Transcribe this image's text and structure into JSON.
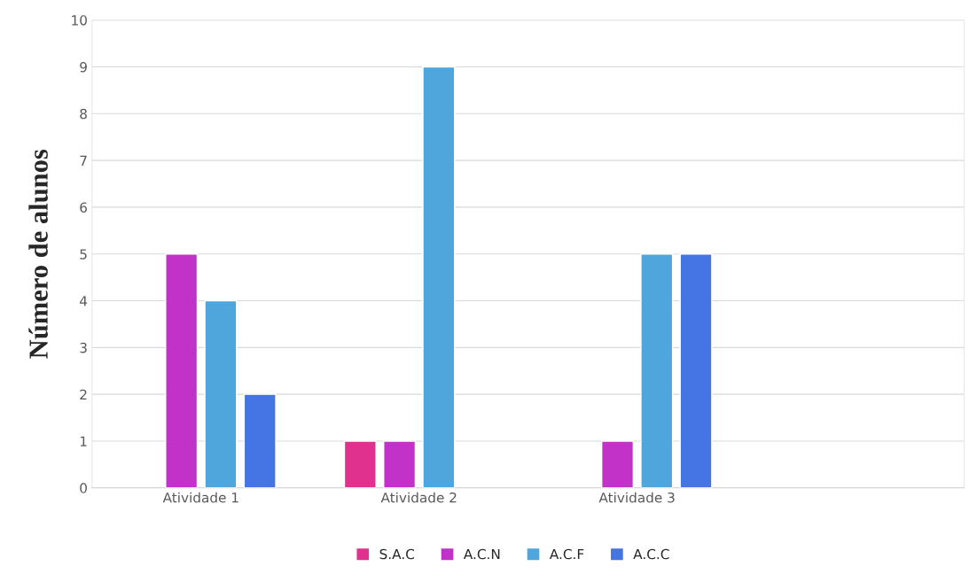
{
  "chart_data": {
    "type": "bar",
    "ylabel": "Número de alunos",
    "categories": [
      "Atividade 1",
      "Atividade 2",
      "Atividade 3",
      null
    ],
    "series": [
      {
        "name": "S.A.C",
        "color": "#e0318f",
        "values": [
          null,
          1,
          null,
          null
        ]
      },
      {
        "name": "A.C.N",
        "color": "#c232c8",
        "values": [
          5,
          1,
          1,
          null
        ]
      },
      {
        "name": "A.C.F",
        "color": "#4fa6dc",
        "values": [
          4,
          9,
          5,
          null
        ]
      },
      {
        "name": "A.C.C",
        "color": "#4574e4",
        "values": [
          2,
          null,
          5,
          null
        ]
      }
    ],
    "ylim": [
      0,
      10
    ],
    "yticks": [
      0,
      1,
      2,
      3,
      4,
      5,
      6,
      7,
      8,
      9,
      10
    ],
    "grid": "y",
    "legend": "bottom"
  }
}
